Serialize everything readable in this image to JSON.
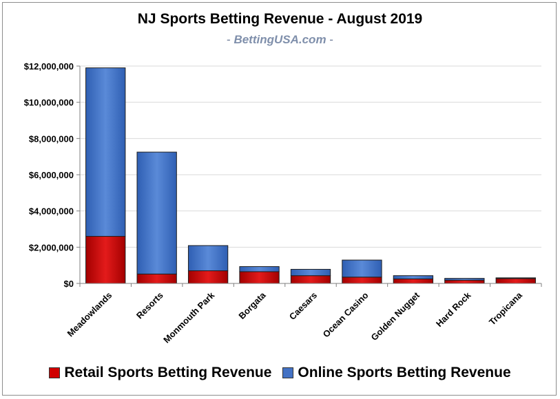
{
  "chart_data": {
    "type": "bar",
    "stacked": true,
    "title": "NJ Sports Betting Revenue - August 2019",
    "subtitle_prefix": "- ",
    "subtitle_site": "BettingUSA.com",
    "subtitle_suffix": " -",
    "categories": [
      "Meadowlands",
      "Resorts",
      "Monmouth Park",
      "Borgata",
      "Caesars",
      "Ocean Casino",
      "Golden Nugget",
      "Hard Rock",
      "Tropicana"
    ],
    "series": [
      {
        "name": "Retail Sports Betting Revenue",
        "color": "#c00000",
        "values": [
          2600000,
          520000,
          700000,
          650000,
          430000,
          350000,
          250000,
          180000,
          270000
        ]
      },
      {
        "name": "Online Sports Betting Revenue",
        "color": "#4472c4",
        "values": [
          9300000,
          6730000,
          1390000,
          280000,
          350000,
          940000,
          180000,
          100000,
          40000
        ]
      }
    ],
    "ylim": [
      0,
      12000000
    ],
    "yticks": [
      0,
      2000000,
      4000000,
      6000000,
      8000000,
      10000000,
      12000000
    ],
    "ytick_labels": [
      "$0",
      "$2,000,000",
      "$4,000,000",
      "$6,000,000",
      "$8,000,000",
      "$10,000,000",
      "$12,000,000"
    ],
    "grid": true,
    "legend_position": "bottom"
  }
}
